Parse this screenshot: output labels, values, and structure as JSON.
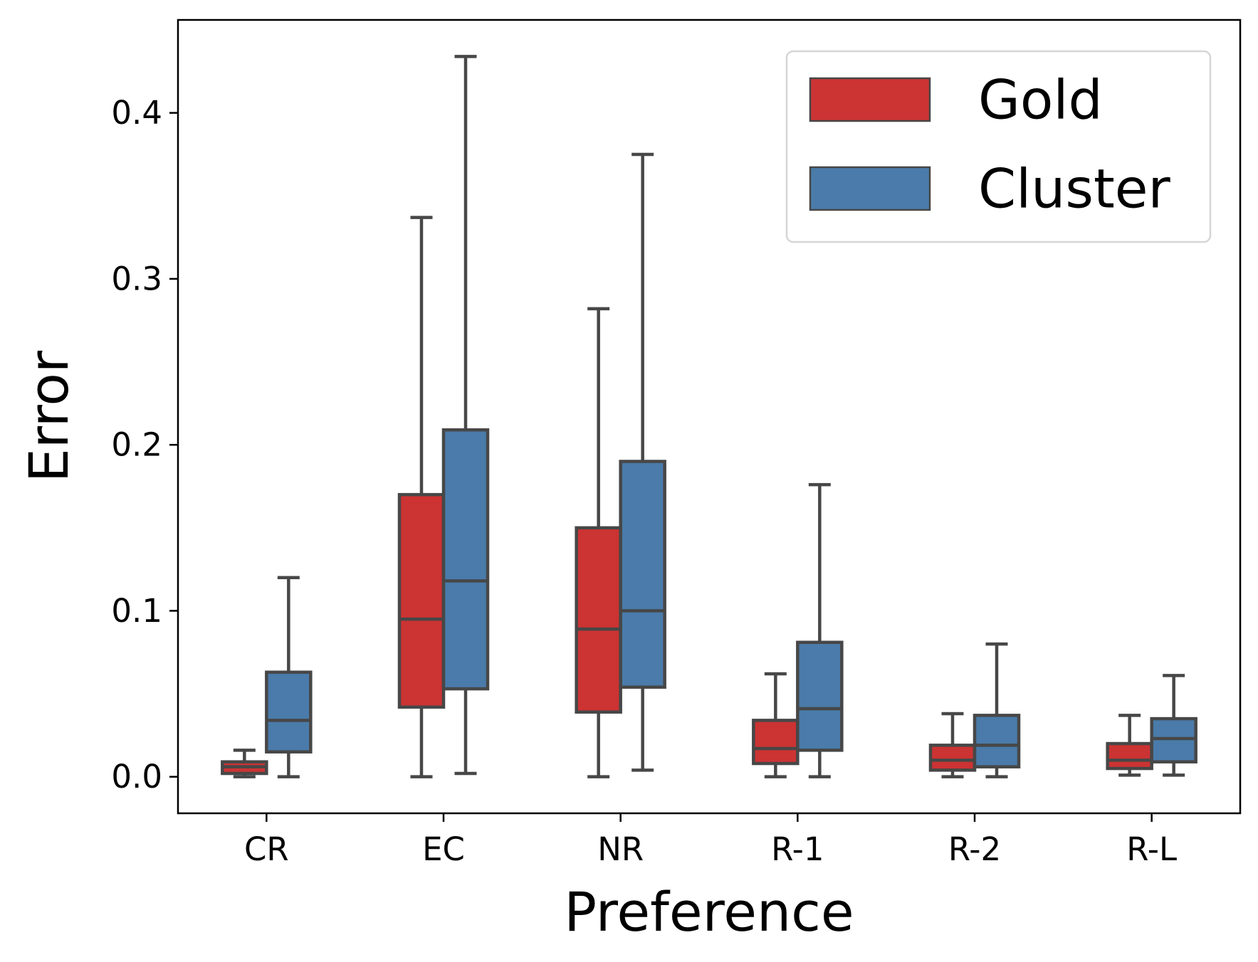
{
  "chart_data": {
    "type": "boxplot",
    "title": "",
    "xlabel": "Preference",
    "ylabel": "Error",
    "ylim": [
      -0.022,
      0.456
    ],
    "yticks": [
      0.0,
      0.1,
      0.2,
      0.3,
      0.4
    ],
    "ytick_labels": [
      "0.0",
      "0.1",
      "0.2",
      "0.3",
      "0.4"
    ],
    "categories": [
      "CR",
      "EC",
      "NR",
      "R-1",
      "R-2",
      "R-L"
    ],
    "legend_position": "top-right",
    "series": [
      {
        "name": "Gold",
        "color": "#cc3333",
        "boxes": [
          {
            "whisker_low": 0.0,
            "q1": 0.002,
            "median": 0.006,
            "q3": 0.009,
            "whisker_high": 0.016
          },
          {
            "whisker_low": 0.0,
            "q1": 0.042,
            "median": 0.095,
            "q3": 0.17,
            "whisker_high": 0.337
          },
          {
            "whisker_low": 0.0,
            "q1": 0.039,
            "median": 0.089,
            "q3": 0.15,
            "whisker_high": 0.282
          },
          {
            "whisker_low": 0.0,
            "q1": 0.008,
            "median": 0.017,
            "q3": 0.034,
            "whisker_high": 0.062
          },
          {
            "whisker_low": 0.0,
            "q1": 0.004,
            "median": 0.01,
            "q3": 0.019,
            "whisker_high": 0.038
          },
          {
            "whisker_low": 0.001,
            "q1": 0.005,
            "median": 0.01,
            "q3": 0.02,
            "whisker_high": 0.037
          }
        ]
      },
      {
        "name": "Cluster",
        "color": "#4a7baa",
        "boxes": [
          {
            "whisker_low": 0.0,
            "q1": 0.015,
            "median": 0.034,
            "q3": 0.063,
            "whisker_high": 0.12
          },
          {
            "whisker_low": 0.002,
            "q1": 0.053,
            "median": 0.118,
            "q3": 0.209,
            "whisker_high": 0.434
          },
          {
            "whisker_low": 0.004,
            "q1": 0.054,
            "median": 0.1,
            "q3": 0.19,
            "whisker_high": 0.375
          },
          {
            "whisker_low": 0.0,
            "q1": 0.016,
            "median": 0.041,
            "q3": 0.081,
            "whisker_high": 0.176
          },
          {
            "whisker_low": 0.0,
            "q1": 0.006,
            "median": 0.019,
            "q3": 0.037,
            "whisker_high": 0.08
          },
          {
            "whisker_low": 0.001,
            "q1": 0.009,
            "median": 0.023,
            "q3": 0.035,
            "whisker_high": 0.061
          }
        ]
      }
    ]
  }
}
